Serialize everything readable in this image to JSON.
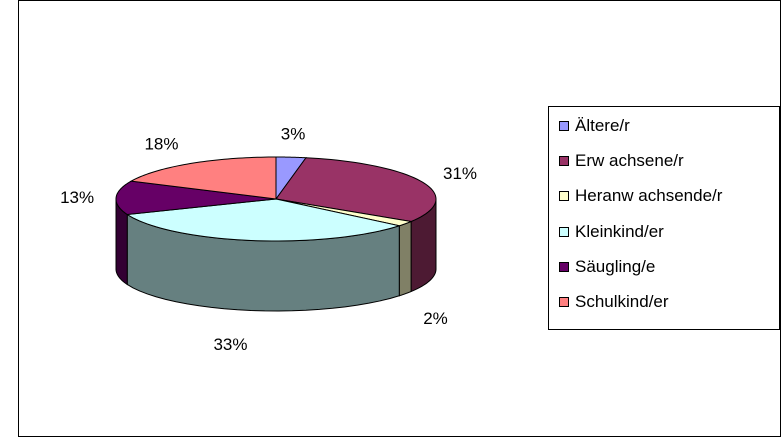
{
  "chart_data": {
    "type": "pie",
    "three_d": true,
    "title": "",
    "legend_position": "right",
    "series": [
      {
        "name": "Ältere/r",
        "value": 3,
        "label": "3%",
        "color": "#9999ff",
        "side_color": "#4d4d80"
      },
      {
        "name": "Erw achsene/r",
        "value": 31,
        "label": "31%",
        "color": "#993366",
        "side_color": "#4d1a33"
      },
      {
        "name": "Heranw achsende/r",
        "value": 2,
        "label": "2%",
        "color": "#ffffcc",
        "side_color": "#808066"
      },
      {
        "name": "Kleinkind/er",
        "value": 33,
        "label": "33%",
        "color": "#ccffff",
        "side_color": "#668080"
      },
      {
        "name": "Säugling/e",
        "value": 13,
        "label": "13%",
        "color": "#660066",
        "side_color": "#330033"
      },
      {
        "name": "Schulkind/er",
        "value": 18,
        "label": "18%",
        "color": "#ff8080",
        "side_color": "#804040"
      }
    ]
  }
}
